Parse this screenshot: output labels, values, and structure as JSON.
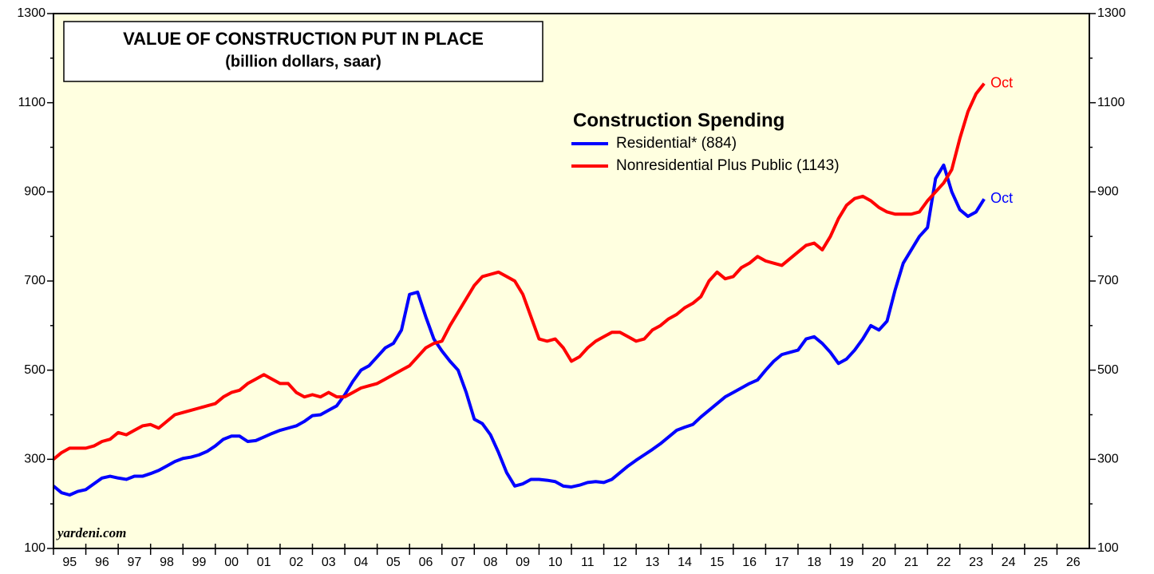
{
  "chart_data": {
    "type": "line",
    "title": "VALUE OF CONSTRUCTION PUT IN PLACE",
    "subtitle": "(billion dollars, saar)",
    "legend_title": "Construction Spending",
    "source": "yardeni.com",
    "xlim": [
      1995,
      2027
    ],
    "xticks": [
      {
        "value": 1995,
        "label": "95"
      },
      {
        "value": 1996,
        "label": "96"
      },
      {
        "value": 1997,
        "label": "97"
      },
      {
        "value": 1998,
        "label": "98"
      },
      {
        "value": 1999,
        "label": "99"
      },
      {
        "value": 2000,
        "label": "00"
      },
      {
        "value": 2001,
        "label": "01"
      },
      {
        "value": 2002,
        "label": "02"
      },
      {
        "value": 2003,
        "label": "03"
      },
      {
        "value": 2004,
        "label": "04"
      },
      {
        "value": 2005,
        "label": "05"
      },
      {
        "value": 2006,
        "label": "06"
      },
      {
        "value": 2007,
        "label": "07"
      },
      {
        "value": 2008,
        "label": "08"
      },
      {
        "value": 2009,
        "label": "09"
      },
      {
        "value": 2010,
        "label": "10"
      },
      {
        "value": 2011,
        "label": "11"
      },
      {
        "value": 2012,
        "label": "12"
      },
      {
        "value": 2013,
        "label": "13"
      },
      {
        "value": 2014,
        "label": "14"
      },
      {
        "value": 2015,
        "label": "15"
      },
      {
        "value": 2016,
        "label": "16"
      },
      {
        "value": 2017,
        "label": "17"
      },
      {
        "value": 2018,
        "label": "18"
      },
      {
        "value": 2019,
        "label": "19"
      },
      {
        "value": 2020,
        "label": "20"
      },
      {
        "value": 2021,
        "label": "21"
      },
      {
        "value": 2022,
        "label": "22"
      },
      {
        "value": 2023,
        "label": "23"
      },
      {
        "value": 2024,
        "label": "24"
      },
      {
        "value": 2025,
        "label": "25"
      },
      {
        "value": 2026,
        "label": "26"
      }
    ],
    "ylim": [
      100,
      1300
    ],
    "yticks": [
      100,
      300,
      500,
      700,
      900,
      1100,
      1300
    ],
    "yticks_minor": [
      200,
      400,
      600,
      800,
      1000,
      1200
    ],
    "x": [
      1995,
      1995.25,
      1995.5,
      1995.75,
      1996,
      1996.25,
      1996.5,
      1996.75,
      1997,
      1997.25,
      1997.5,
      1997.75,
      1998,
      1998.25,
      1998.5,
      1998.75,
      1999,
      1999.25,
      1999.5,
      1999.75,
      2000,
      2000.25,
      2000.5,
      2000.75,
      2001,
      2001.25,
      2001.5,
      2001.75,
      2002,
      2002.25,
      2002.5,
      2002.75,
      2003,
      2003.25,
      2003.5,
      2003.75,
      2004,
      2004.25,
      2004.5,
      2004.75,
      2005,
      2005.25,
      2005.5,
      2005.75,
      2006,
      2006.25,
      2006.5,
      2006.75,
      2007,
      2007.25,
      2007.5,
      2007.75,
      2008,
      2008.25,
      2008.5,
      2008.75,
      2009,
      2009.25,
      2009.5,
      2009.75,
      2010,
      2010.25,
      2010.5,
      2010.75,
      2011,
      2011.25,
      2011.5,
      2011.75,
      2012,
      2012.25,
      2012.5,
      2012.75,
      2013,
      2013.25,
      2013.5,
      2013.75,
      2014,
      2014.25,
      2014.5,
      2014.75,
      2015,
      2015.25,
      2015.5,
      2015.75,
      2016,
      2016.25,
      2016.5,
      2016.75,
      2017,
      2017.25,
      2017.5,
      2017.75,
      2018,
      2018.25,
      2018.5,
      2018.75,
      2019,
      2019.25,
      2019.5,
      2019.75,
      2020,
      2020.25,
      2020.5,
      2020.75,
      2021,
      2021.25,
      2021.5,
      2021.75,
      2022,
      2022.25,
      2022.5,
      2022.75,
      2023,
      2023.25,
      2023.5,
      2023.75
    ],
    "series": [
      {
        "name": "Residential* (884)",
        "color": "#0000ff",
        "end_label": "Oct",
        "values": [
          240,
          225,
          220,
          228,
          232,
          245,
          258,
          262,
          258,
          255,
          262,
          262,
          268,
          275,
          285,
          295,
          302,
          305,
          310,
          318,
          330,
          345,
          352,
          352,
          340,
          342,
          350,
          358,
          365,
          370,
          375,
          385,
          398,
          400,
          410,
          420,
          445,
          475,
          500,
          510,
          530,
          550,
          560,
          590,
          670,
          675,
          620,
          570,
          543,
          520,
          500,
          450,
          390,
          380,
          355,
          315,
          270,
          240,
          245,
          255,
          255,
          253,
          250,
          240,
          238,
          242,
          248,
          250,
          248,
          255,
          270,
          285,
          298,
          310,
          322,
          335,
          350,
          365,
          372,
          378,
          395,
          410,
          425,
          440,
          450,
          460,
          470,
          478,
          500,
          520,
          535,
          540,
          545,
          570,
          575,
          560,
          540,
          515,
          525,
          545,
          570,
          600,
          590,
          610,
          680,
          740,
          770,
          800,
          820,
          930,
          960,
          900,
          860,
          845,
          855,
          884
        ]
      },
      {
        "name": "Nonresidential Plus Public (1143)",
        "color": "#ff0000",
        "end_label": "Oct",
        "values": [
          300,
          315,
          325,
          325,
          325,
          330,
          340,
          345,
          360,
          355,
          365,
          375,
          378,
          370,
          385,
          400,
          405,
          410,
          415,
          420,
          425,
          440,
          450,
          455,
          470,
          480,
          490,
          480,
          470,
          470,
          450,
          440,
          445,
          440,
          450,
          440,
          440,
          450,
          460,
          465,
          470,
          480,
          490,
          500,
          510,
          530,
          550,
          560,
          565,
          600,
          630,
          660,
          690,
          710,
          715,
          720,
          710,
          700,
          670,
          620,
          570,
          565,
          570,
          550,
          520,
          530,
          550,
          565,
          575,
          585,
          585,
          575,
          565,
          570,
          590,
          600,
          615,
          625,
          640,
          650,
          665,
          700,
          720,
          705,
          710,
          730,
          740,
          755,
          745,
          740,
          735,
          750,
          765,
          780,
          785,
          770,
          800,
          840,
          870,
          885,
          890,
          880,
          865,
          855,
          850,
          850,
          850,
          855,
          880,
          900,
          920,
          950,
          1020,
          1080,
          1120,
          1143
        ]
      }
    ]
  }
}
